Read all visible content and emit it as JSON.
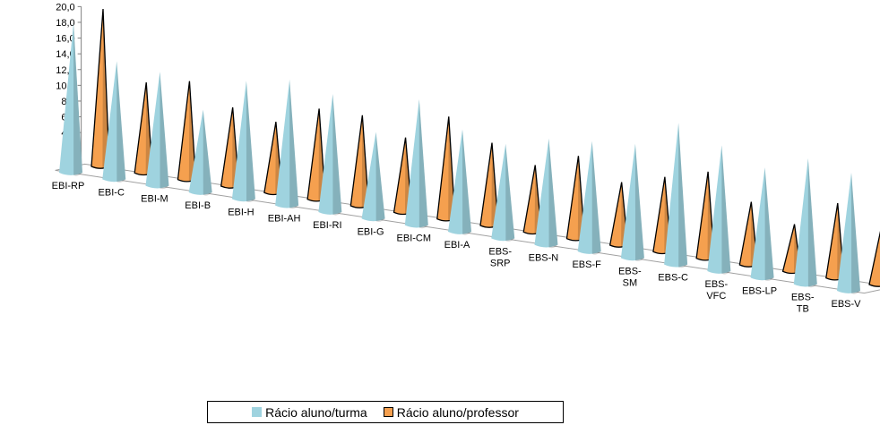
{
  "chart_data": {
    "type": "bar",
    "style": "3d-cone",
    "categories": [
      "EBI-RP",
      "EBI-C",
      "EBI-M",
      "EBI-B",
      "EBI-H",
      "EBI-AH",
      "EBI-RI",
      "EBI-G",
      "EBI-CM",
      "EBI-A",
      "EBS-SRP",
      "EBS-N",
      "EBS-F",
      "EBS-SM",
      "EBS-C",
      "EBS-VFC",
      "EBS-LP",
      "EBS-TB",
      "EBS-V"
    ],
    "series": [
      {
        "name": "Rácio aluno/turma",
        "color": "#9fd3df",
        "values": [
          19.0,
          15.0,
          14.5,
          10.5,
          15.0,
          16.0,
          15.0,
          11.0,
          16.0,
          13.0,
          12.0,
          13.5,
          14.0,
          14.5,
          18.0,
          16.0,
          14.0,
          16.0,
          15.0
        ]
      },
      {
        "name": "Rácio aluno/professor",
        "color": "#f5a04f",
        "values": [
          20.0,
          11.5,
          12.5,
          10.0,
          9.0,
          11.5,
          11.5,
          9.5,
          13.0,
          10.5,
          8.5,
          10.5,
          8.0,
          9.5,
          11.0,
          8.0,
          6.0,
          9.5,
          7.0
        ]
      }
    ],
    "ylim": [
      0,
      20
    ],
    "yticks": [
      "0,0",
      "2,0",
      "4,0",
      "6,0",
      "8,0",
      "10,0",
      "12,0",
      "14,0",
      "16,0",
      "18,0",
      "20,0"
    ],
    "grid": false,
    "legend_position": "bottom"
  }
}
